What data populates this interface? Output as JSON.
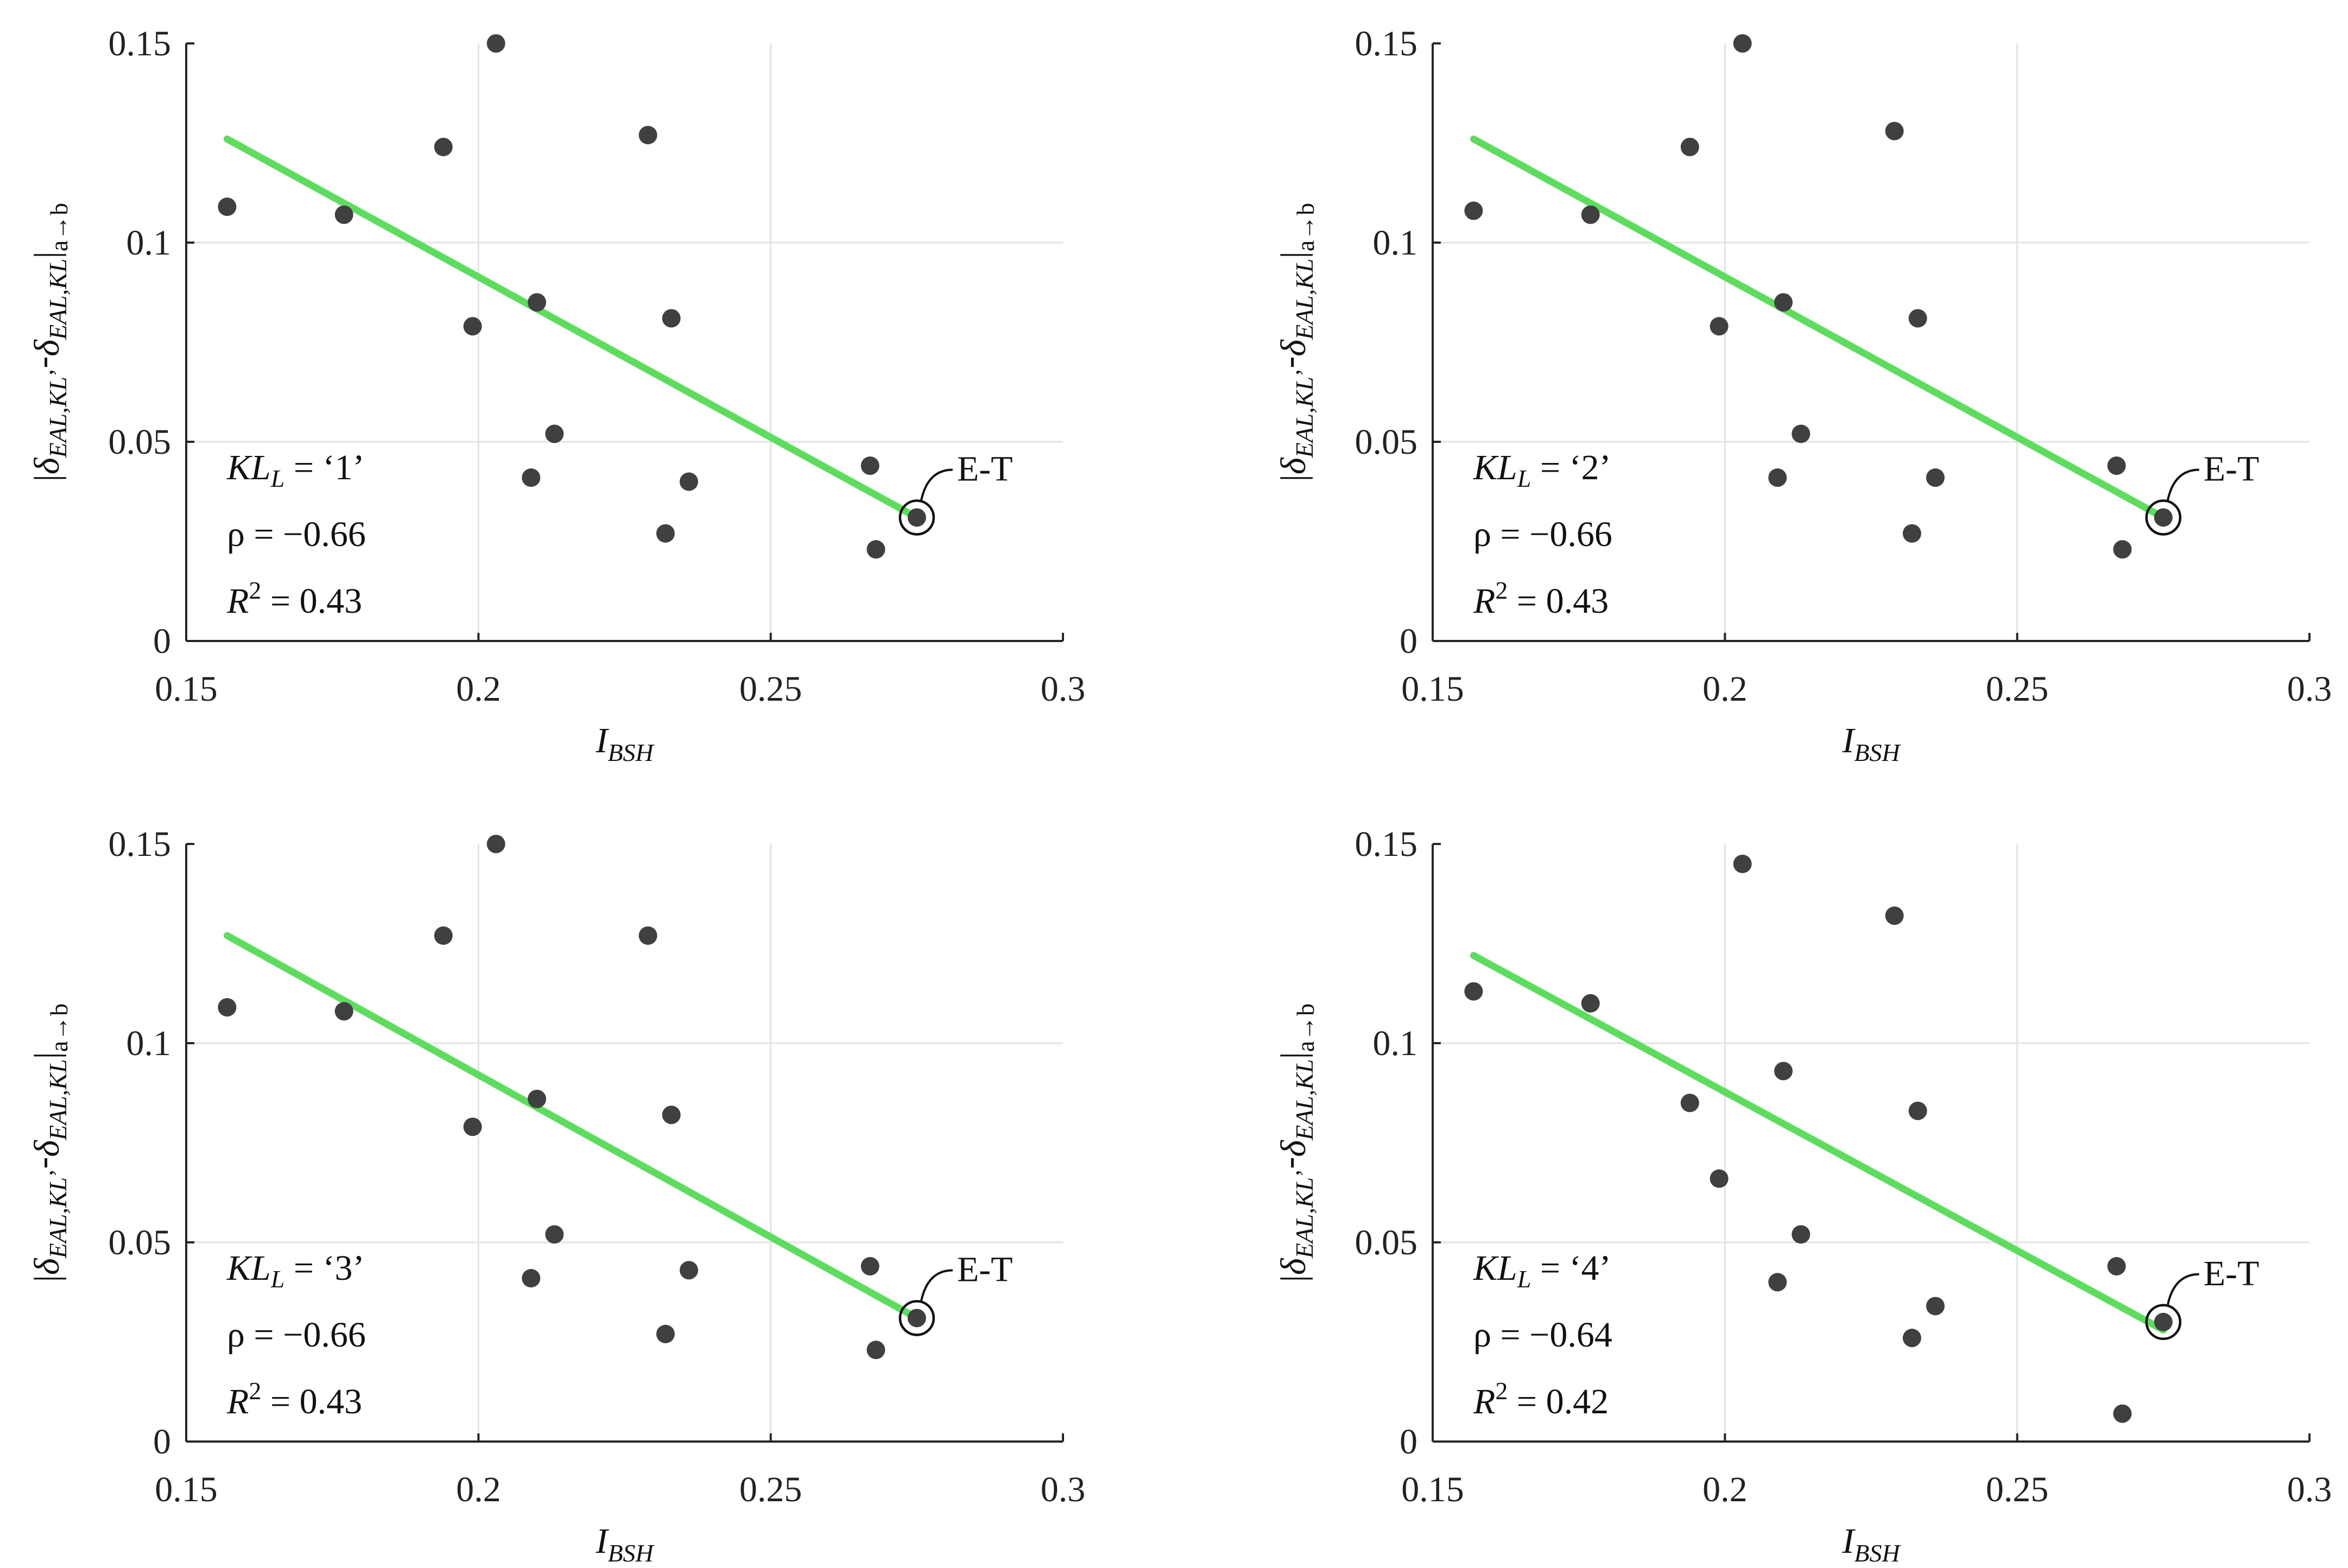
{
  "figure": {
    "colors": {
      "fit_line": "#5FDC5F",
      "points": "#404040",
      "grid": "#e3e3e3",
      "axis": "#262626",
      "text": "#222222"
    },
    "common": {
      "x_ticks": [
        "0.15",
        "0.2",
        "0.25",
        "0.3"
      ],
      "y_ticks": [
        "0",
        "0.05",
        "0.1",
        "0.15"
      ],
      "xlabel": {
        "main": "I",
        "sub": "BSH"
      },
      "ylabel": {
        "pre": "|",
        "delta1": "δ",
        "sub1": "EAL,KL",
        "prime": "’",
        "minus": "-",
        "delta2": "δ",
        "sub2": "EAL,KL",
        "post": "|",
        "sub3": "a→b"
      },
      "kl_prefix": {
        "main": "KL",
        "sub": "L",
        "eq": " = "
      },
      "rho_prefix": "ρ = ",
      "r2_prefix": {
        "main": "R",
        "sup": "2",
        "eq": " = "
      },
      "marker_label": "E-T"
    }
  },
  "chart_data": [
    {
      "type": "scatter",
      "panel": "top-left",
      "title": "",
      "xlabel": "I_BSH",
      "ylabel": "|δEAL,KL’ - δEAL,KL| a→b",
      "xlim": [
        0.15,
        0.3
      ],
      "ylim": [
        0,
        0.15
      ],
      "grid": true,
      "kl_value": "‘1’",
      "rho_value": "−0.66",
      "r2_value": "0.43",
      "points": [
        [
          0.157,
          0.109
        ],
        [
          0.177,
          0.107
        ],
        [
          0.194,
          0.124
        ],
        [
          0.199,
          0.079
        ],
        [
          0.203,
          0.15
        ],
        [
          0.209,
          0.041
        ],
        [
          0.21,
          0.085
        ],
        [
          0.213,
          0.052
        ],
        [
          0.229,
          0.127
        ],
        [
          0.232,
          0.027
        ],
        [
          0.233,
          0.081
        ],
        [
          0.236,
          0.04
        ],
        [
          0.267,
          0.044
        ],
        [
          0.268,
          0.023
        ],
        [
          0.275,
          0.031
        ]
      ],
      "fit_line": {
        "x": [
          0.157,
          0.275
        ],
        "y": [
          0.126,
          0.031
        ]
      },
      "highlight": {
        "label": "E-T",
        "x": 0.275,
        "y": 0.031
      }
    },
    {
      "type": "scatter",
      "panel": "top-right",
      "title": "",
      "xlabel": "I_BSH",
      "ylabel": "|δEAL,KL’ - δEAL,KL| a→b",
      "xlim": [
        0.15,
        0.3
      ],
      "ylim": [
        0,
        0.15
      ],
      "grid": true,
      "kl_value": "‘2’",
      "rho_value": "−0.66",
      "r2_value": "0.43",
      "points": [
        [
          0.157,
          0.108
        ],
        [
          0.177,
          0.107
        ],
        [
          0.194,
          0.124
        ],
        [
          0.199,
          0.079
        ],
        [
          0.203,
          0.15
        ],
        [
          0.209,
          0.041
        ],
        [
          0.21,
          0.085
        ],
        [
          0.213,
          0.052
        ],
        [
          0.229,
          0.128
        ],
        [
          0.232,
          0.027
        ],
        [
          0.233,
          0.081
        ],
        [
          0.236,
          0.041
        ],
        [
          0.267,
          0.044
        ],
        [
          0.268,
          0.023
        ],
        [
          0.275,
          0.031
        ]
      ],
      "fit_line": {
        "x": [
          0.157,
          0.275
        ],
        "y": [
          0.126,
          0.031
        ]
      },
      "highlight": {
        "label": "E-T",
        "x": 0.275,
        "y": 0.031
      }
    },
    {
      "type": "scatter",
      "panel": "bottom-left",
      "title": "",
      "xlabel": "I_BSH",
      "ylabel": "|δEAL,KL’ - δEAL,KL| a→b",
      "xlim": [
        0.15,
        0.3
      ],
      "ylim": [
        0,
        0.15
      ],
      "grid": true,
      "kl_value": "‘3’",
      "rho_value": "−0.66",
      "r2_value": "0.43",
      "points": [
        [
          0.157,
          0.109
        ],
        [
          0.177,
          0.108
        ],
        [
          0.194,
          0.127
        ],
        [
          0.199,
          0.079
        ],
        [
          0.203,
          0.15
        ],
        [
          0.209,
          0.041
        ],
        [
          0.21,
          0.086
        ],
        [
          0.213,
          0.052
        ],
        [
          0.229,
          0.127
        ],
        [
          0.232,
          0.027
        ],
        [
          0.233,
          0.082
        ],
        [
          0.236,
          0.043
        ],
        [
          0.267,
          0.044
        ],
        [
          0.268,
          0.023
        ],
        [
          0.275,
          0.031
        ]
      ],
      "fit_line": {
        "x": [
          0.157,
          0.275
        ],
        "y": [
          0.127,
          0.031
        ]
      },
      "highlight": {
        "label": "E-T",
        "x": 0.275,
        "y": 0.031
      }
    },
    {
      "type": "scatter",
      "panel": "bottom-right",
      "title": "",
      "xlabel": "I_BSH",
      "ylabel": "|δEAL,KL’ - δEAL,KL| a→b",
      "xlim": [
        0.15,
        0.3
      ],
      "ylim": [
        0,
        0.15
      ],
      "grid": true,
      "kl_value": "‘4’",
      "rho_value": "−0.64",
      "r2_value": "0.42",
      "points": [
        [
          0.157,
          0.113
        ],
        [
          0.177,
          0.11
        ],
        [
          0.194,
          0.085
        ],
        [
          0.199,
          0.066
        ],
        [
          0.203,
          0.145
        ],
        [
          0.209,
          0.04
        ],
        [
          0.21,
          0.093
        ],
        [
          0.213,
          0.052
        ],
        [
          0.229,
          0.132
        ],
        [
          0.232,
          0.026
        ],
        [
          0.233,
          0.083
        ],
        [
          0.236,
          0.034
        ],
        [
          0.267,
          0.044
        ],
        [
          0.268,
          0.007
        ],
        [
          0.275,
          0.03
        ]
      ],
      "fit_line": {
        "x": [
          0.157,
          0.275
        ],
        "y": [
          0.122,
          0.028
        ]
      },
      "highlight": {
        "label": "E-T",
        "x": 0.275,
        "y": 0.03
      }
    }
  ]
}
